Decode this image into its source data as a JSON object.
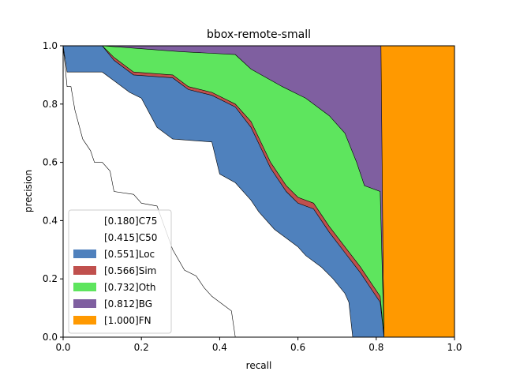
{
  "chart_data": {
    "type": "area",
    "title": "bbox-remote-small",
    "xlabel": "recall",
    "ylabel": "precision",
    "xlim": [
      0,
      1
    ],
    "ylim": [
      0,
      1
    ],
    "xticks": [
      "0.0",
      "0.2",
      "0.4",
      "0.6",
      "0.8",
      "1.0"
    ],
    "yticks": [
      "0.0",
      "0.2",
      "0.4",
      "0.6",
      "0.8",
      "1.0"
    ],
    "grid": false,
    "legend_position": "lower-left",
    "series": [
      {
        "name": "[1.000]FN",
        "color": "#FF9900",
        "fill": true,
        "points": [
          [
            0.82,
            0
          ],
          [
            0.81,
            1
          ],
          [
            1,
            1
          ],
          [
            1,
            0
          ]
        ]
      },
      {
        "name": "[0.812]BG",
        "color": "#7F5FA0",
        "fill": true,
        "points": [
          [
            0,
            1
          ],
          [
            0.812,
            1
          ],
          [
            0.818,
            0.2
          ],
          [
            0.82,
            0
          ]
        ]
      },
      {
        "name": "[0.732]Oth",
        "color": "#5EE55E",
        "fill": true,
        "points": [
          [
            0,
            1
          ],
          [
            0.1,
            1
          ],
          [
            0.2,
            0.99
          ],
          [
            0.3,
            0.98
          ],
          [
            0.44,
            0.97
          ],
          [
            0.48,
            0.92
          ],
          [
            0.56,
            0.86
          ],
          [
            0.62,
            0.82
          ],
          [
            0.68,
            0.76
          ],
          [
            0.72,
            0.7
          ],
          [
            0.75,
            0.6
          ],
          [
            0.77,
            0.52
          ],
          [
            0.81,
            0.5
          ],
          [
            0.82,
            0
          ]
        ]
      },
      {
        "name": "[0.566]Sim",
        "color": "#C0504D",
        "fill": true,
        "points": [
          [
            0,
            1
          ],
          [
            0.1,
            1
          ],
          [
            0.13,
            0.96
          ],
          [
            0.18,
            0.91
          ],
          [
            0.28,
            0.9
          ],
          [
            0.32,
            0.86
          ],
          [
            0.38,
            0.84
          ],
          [
            0.44,
            0.8
          ],
          [
            0.48,
            0.74
          ],
          [
            0.53,
            0.6
          ],
          [
            0.57,
            0.52
          ],
          [
            0.6,
            0.48
          ],
          [
            0.64,
            0.46
          ],
          [
            0.68,
            0.38
          ],
          [
            0.72,
            0.31
          ],
          [
            0.76,
            0.24
          ],
          [
            0.79,
            0.18
          ],
          [
            0.81,
            0.14
          ],
          [
            0.82,
            0
          ]
        ]
      },
      {
        "name": "[0.551]Loc",
        "color": "#4F81BD",
        "fill": true,
        "points": [
          [
            0,
            1
          ],
          [
            0.1,
            1
          ],
          [
            0.13,
            0.95
          ],
          [
            0.18,
            0.9
          ],
          [
            0.28,
            0.89
          ],
          [
            0.32,
            0.85
          ],
          [
            0.38,
            0.83
          ],
          [
            0.44,
            0.79
          ],
          [
            0.48,
            0.72
          ],
          [
            0.53,
            0.58
          ],
          [
            0.57,
            0.5
          ],
          [
            0.6,
            0.46
          ],
          [
            0.64,
            0.44
          ],
          [
            0.68,
            0.36
          ],
          [
            0.72,
            0.29
          ],
          [
            0.76,
            0.22
          ],
          [
            0.79,
            0.16
          ],
          [
            0.81,
            0.12
          ],
          [
            0.82,
            0
          ]
        ]
      },
      {
        "name": "[0.415]C50",
        "color": "#FFFFFF",
        "fill": true,
        "points": [
          [
            0,
            1
          ],
          [
            0.01,
            0.91
          ],
          [
            0.1,
            0.91
          ],
          [
            0.13,
            0.88
          ],
          [
            0.17,
            0.84
          ],
          [
            0.2,
            0.82
          ],
          [
            0.24,
            0.72
          ],
          [
            0.28,
            0.68
          ],
          [
            0.38,
            0.67
          ],
          [
            0.4,
            0.56
          ],
          [
            0.44,
            0.53
          ],
          [
            0.48,
            0.47
          ],
          [
            0.5,
            0.43
          ],
          [
            0.54,
            0.37
          ],
          [
            0.58,
            0.33
          ],
          [
            0.6,
            0.31
          ],
          [
            0.62,
            0.28
          ],
          [
            0.66,
            0.24
          ],
          [
            0.69,
            0.2
          ],
          [
            0.72,
            0.15
          ],
          [
            0.73,
            0.12
          ],
          [
            0.74,
            0
          ]
        ]
      },
      {
        "name": "[0.180]C75",
        "color": "#FFFFFF",
        "fill": false,
        "points": [
          [
            0,
            1
          ],
          [
            0.01,
            0.86
          ],
          [
            0.02,
            0.86
          ],
          [
            0.03,
            0.78
          ],
          [
            0.05,
            0.68
          ],
          [
            0.07,
            0.64
          ],
          [
            0.08,
            0.6
          ],
          [
            0.1,
            0.6
          ],
          [
            0.12,
            0.57
          ],
          [
            0.13,
            0.5
          ],
          [
            0.18,
            0.49
          ],
          [
            0.2,
            0.46
          ],
          [
            0.24,
            0.45
          ],
          [
            0.28,
            0.3
          ],
          [
            0.31,
            0.23
          ],
          [
            0.34,
            0.21
          ],
          [
            0.36,
            0.17
          ],
          [
            0.38,
            0.14
          ],
          [
            0.41,
            0.11
          ],
          [
            0.43,
            0.09
          ],
          [
            0.44,
            0
          ]
        ]
      }
    ]
  }
}
